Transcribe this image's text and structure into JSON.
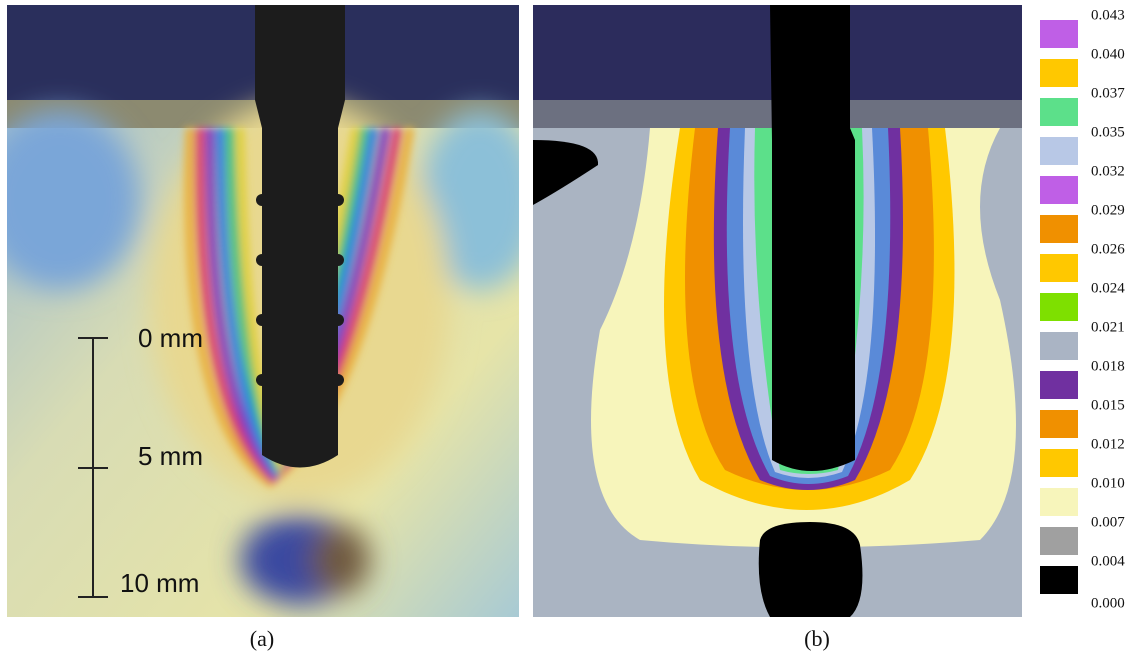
{
  "panel_a": {
    "caption": "(a)",
    "scale_labels": [
      "0 mm",
      "5 mm",
      "10 mm"
    ]
  },
  "panel_b": {
    "caption": "(b)"
  },
  "legend": {
    "labels": [
      "0.043",
      "0.040",
      "0.037",
      "0.035",
      "0.032",
      "0.029",
      "0.026",
      "0.024",
      "0.021",
      "0.018",
      "0.015",
      "0.012",
      "0.010",
      "0.007",
      "0.004",
      "0.000"
    ],
    "colors": [
      "#bf5fe6",
      "#ffc800",
      "#5ce08a",
      "#b8c8e6",
      "#bf5fe6",
      "#f09000",
      "#ffc800",
      "#7ee000",
      "#aab4c4",
      "#7030a0",
      "#f09000",
      "#ffc800",
      "#f7f5bb",
      "#a0a0a0",
      "#000000"
    ]
  }
}
